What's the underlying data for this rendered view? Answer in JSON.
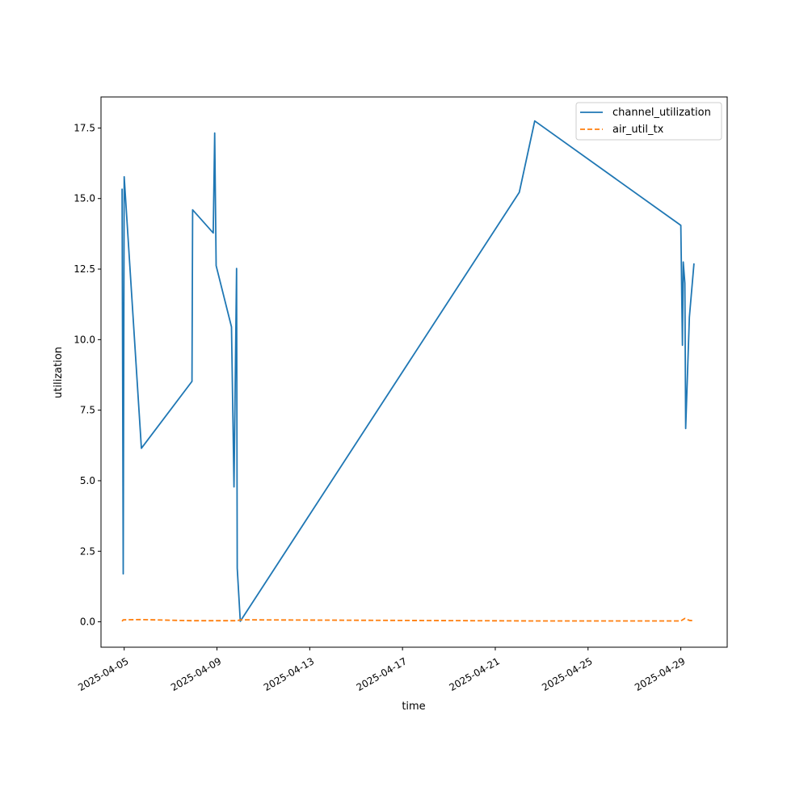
{
  "chart_data": {
    "type": "line",
    "xlabel": "time",
    "ylabel": "utilization",
    "x_ticks": [
      "2025-04-05",
      "2025-04-09",
      "2025-04-13",
      "2025-04-17",
      "2025-04-21",
      "2025-04-25",
      "2025-04-29"
    ],
    "y_ticks": [
      "0.0",
      "2.5",
      "5.0",
      "7.5",
      "10.0",
      "12.5",
      "15.0",
      "17.5"
    ],
    "xlim": [
      "2025-04-04 00:00",
      "2025-05-01 00:00"
    ],
    "ylim": [
      -0.9,
      18.6
    ],
    "grid": false,
    "legend_position": "upper right",
    "series": [
      {
        "name": "channel_utilization",
        "color": "#1f77b4",
        "dash": "solid",
        "points": [
          [
            "2025-04-04 21:50",
            15.35
          ],
          [
            "2025-04-04 23:00",
            1.7
          ],
          [
            "2025-04-05 00:00",
            15.77
          ],
          [
            "2025-04-05 17:50",
            6.15
          ],
          [
            "2025-04-07 22:10",
            8.52
          ],
          [
            "2025-04-07 22:50",
            14.6
          ],
          [
            "2025-04-08 20:10",
            13.78
          ],
          [
            "2025-04-08 21:40",
            17.32
          ],
          [
            "2025-04-08 23:10",
            12.62
          ],
          [
            "2025-04-09 15:00",
            10.45
          ],
          [
            "2025-04-09 17:40",
            4.78
          ],
          [
            "2025-04-09 20:20",
            12.52
          ],
          [
            "2025-04-09 21:00",
            1.9
          ],
          [
            "2025-04-10 00:10",
            0.02
          ],
          [
            "2025-04-22 00:50",
            15.22
          ],
          [
            "2025-04-22 16:50",
            17.75
          ],
          [
            "2025-04-29 00:00",
            14.05
          ],
          [
            "2025-04-29 01:40",
            9.8
          ],
          [
            "2025-04-29 02:30",
            12.75
          ],
          [
            "2025-04-29 04:10",
            12.0
          ],
          [
            "2025-04-29 05:00",
            6.85
          ],
          [
            "2025-04-29 08:50",
            10.8
          ],
          [
            "2025-04-29 13:40",
            12.7
          ]
        ]
      },
      {
        "name": "air_util_tx",
        "color": "#ff7f0e",
        "dash": "dashed",
        "points": [
          [
            "2025-04-04 21:50",
            0.02
          ],
          [
            "2025-04-04 23:00",
            0.07
          ],
          [
            "2025-04-05 17:50",
            0.08
          ],
          [
            "2025-04-07 22:10",
            0.04
          ],
          [
            "2025-04-08 21:40",
            0.04
          ],
          [
            "2025-04-09 21:00",
            0.04
          ],
          [
            "2025-04-10 00:10",
            0.07
          ],
          [
            "2025-04-22 16:50",
            0.03
          ],
          [
            "2025-04-29 00:00",
            0.03
          ],
          [
            "2025-04-29 04:10",
            0.12
          ],
          [
            "2025-04-29 08:50",
            0.05
          ],
          [
            "2025-04-29 13:40",
            0.04
          ]
        ]
      }
    ]
  }
}
